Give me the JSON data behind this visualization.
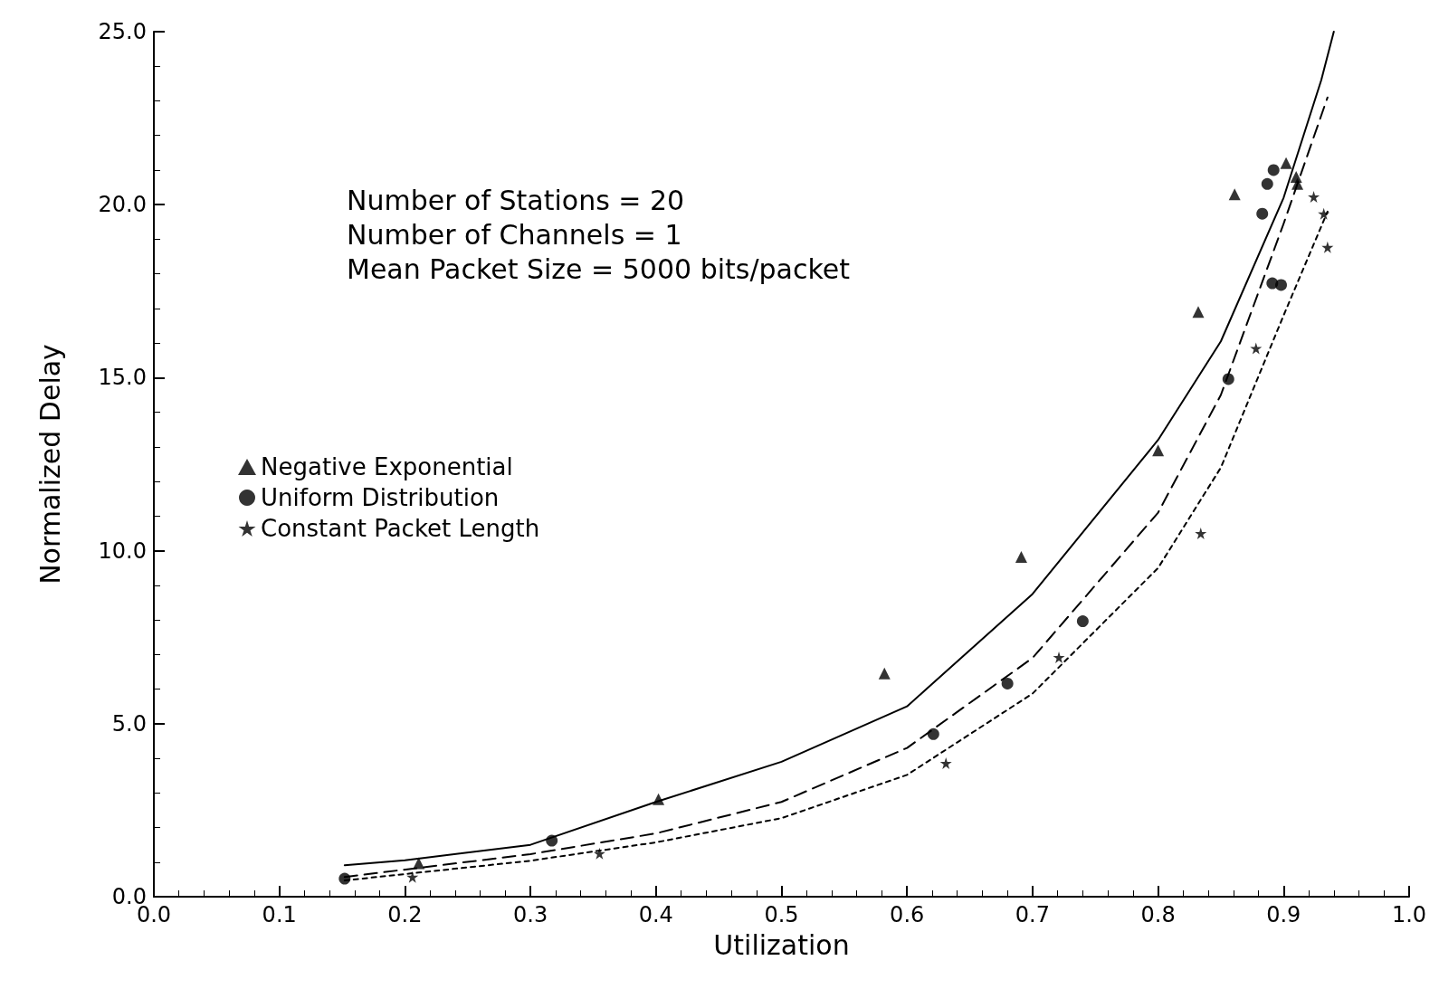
{
  "chart_data": {
    "type": "scatter",
    "xlabel": "Utilization",
    "ylabel": "Normalized Delay",
    "annotations": [
      "Number of Stations = 20",
      "Number of Channels = 1",
      "Mean Packet Size = 5000 bits/packet"
    ],
    "xlim": [
      0,
      1
    ],
    "ylim": [
      0,
      25
    ],
    "xticks": [
      {
        "value": 0,
        "label": "0.0"
      },
      0.1,
      0.2,
      0.3,
      0.4,
      0.5,
      0.6,
      0.7,
      0.8,
      0.9,
      {
        "value": 1,
        "label": "1.0"
      }
    ],
    "yticks": [
      {
        "value": 0,
        "label": "0.0"
      },
      {
        "value": 5,
        "label": "5.0"
      },
      {
        "value": 10,
        "label": "10.0"
      },
      {
        "value": 15,
        "label": "15.0"
      },
      {
        "value": 20,
        "label": "20.0"
      },
      {
        "value": 25,
        "label": "25.0"
      }
    ],
    "grid": false,
    "legend": "left",
    "series": [
      {
        "name": "Negative Exponential",
        "marker": "triangle",
        "color": "#000000",
        "x": [
          0.211,
          0.402,
          0.582,
          0.691,
          0.8,
          0.832,
          0.861,
          0.902,
          0.91,
          0.911
        ],
        "values": [
          0.97,
          2.82,
          6.45,
          9.82,
          12.9,
          16.9,
          20.3,
          21.2,
          20.8,
          20.6
        ]
      },
      {
        "name": "Uniform Distribution",
        "marker": "circle",
        "color": "#000000",
        "x": [
          0.152,
          0.317,
          0.621,
          0.68,
          0.74,
          0.856,
          0.883,
          0.887,
          0.892,
          0.891,
          0.898
        ],
        "values": [
          0.52,
          1.62,
          4.7,
          6.16,
          7.96,
          14.96,
          19.74,
          20.6,
          21.0,
          17.73,
          17.68
        ]
      },
      {
        "name": "Constant Packet Length",
        "marker": "star",
        "color": "#000000",
        "x": [
          0.206,
          0.355,
          0.631,
          0.721,
          0.834,
          0.878,
          0.924,
          0.932,
          0.935
        ],
        "values": [
          0.57,
          1.25,
          3.86,
          6.92,
          10.5,
          15.85,
          20.23,
          19.74,
          18.77
        ]
      },
      {
        "type": "line",
        "marker": "none",
        "line_style": "solid",
        "color": "#000000",
        "x": [
          0.152,
          0.2,
          0.3,
          0.4,
          0.5,
          0.6,
          0.7,
          0.8,
          0.85,
          0.9,
          0.93,
          0.94
        ],
        "values": [
          0.91,
          1.05,
          1.5,
          2.74,
          3.9,
          5.5,
          8.75,
          13.2,
          16.05,
          20.2,
          23.6,
          25
        ]
      },
      {
        "type": "line",
        "marker": "none",
        "line_style": "dashed",
        "color": "#000000",
        "x": [
          0.152,
          0.3,
          0.4,
          0.5,
          0.6,
          0.7,
          0.8,
          0.85,
          0.9,
          0.935
        ],
        "values": [
          0.57,
          1.23,
          1.83,
          2.74,
          4.3,
          6.9,
          11.1,
          14.5,
          19.45,
          23.1
        ]
      },
      {
        "type": "line",
        "marker": "none",
        "line_style": "dotted",
        "color": "#000000",
        "x": [
          0.152,
          0.3,
          0.4,
          0.5,
          0.6,
          0.7,
          0.8,
          0.85,
          0.9,
          0.935
        ],
        "values": [
          0.47,
          1.04,
          1.57,
          2.27,
          3.52,
          5.87,
          9.5,
          12.4,
          16.8,
          19.8
        ]
      }
    ]
  }
}
